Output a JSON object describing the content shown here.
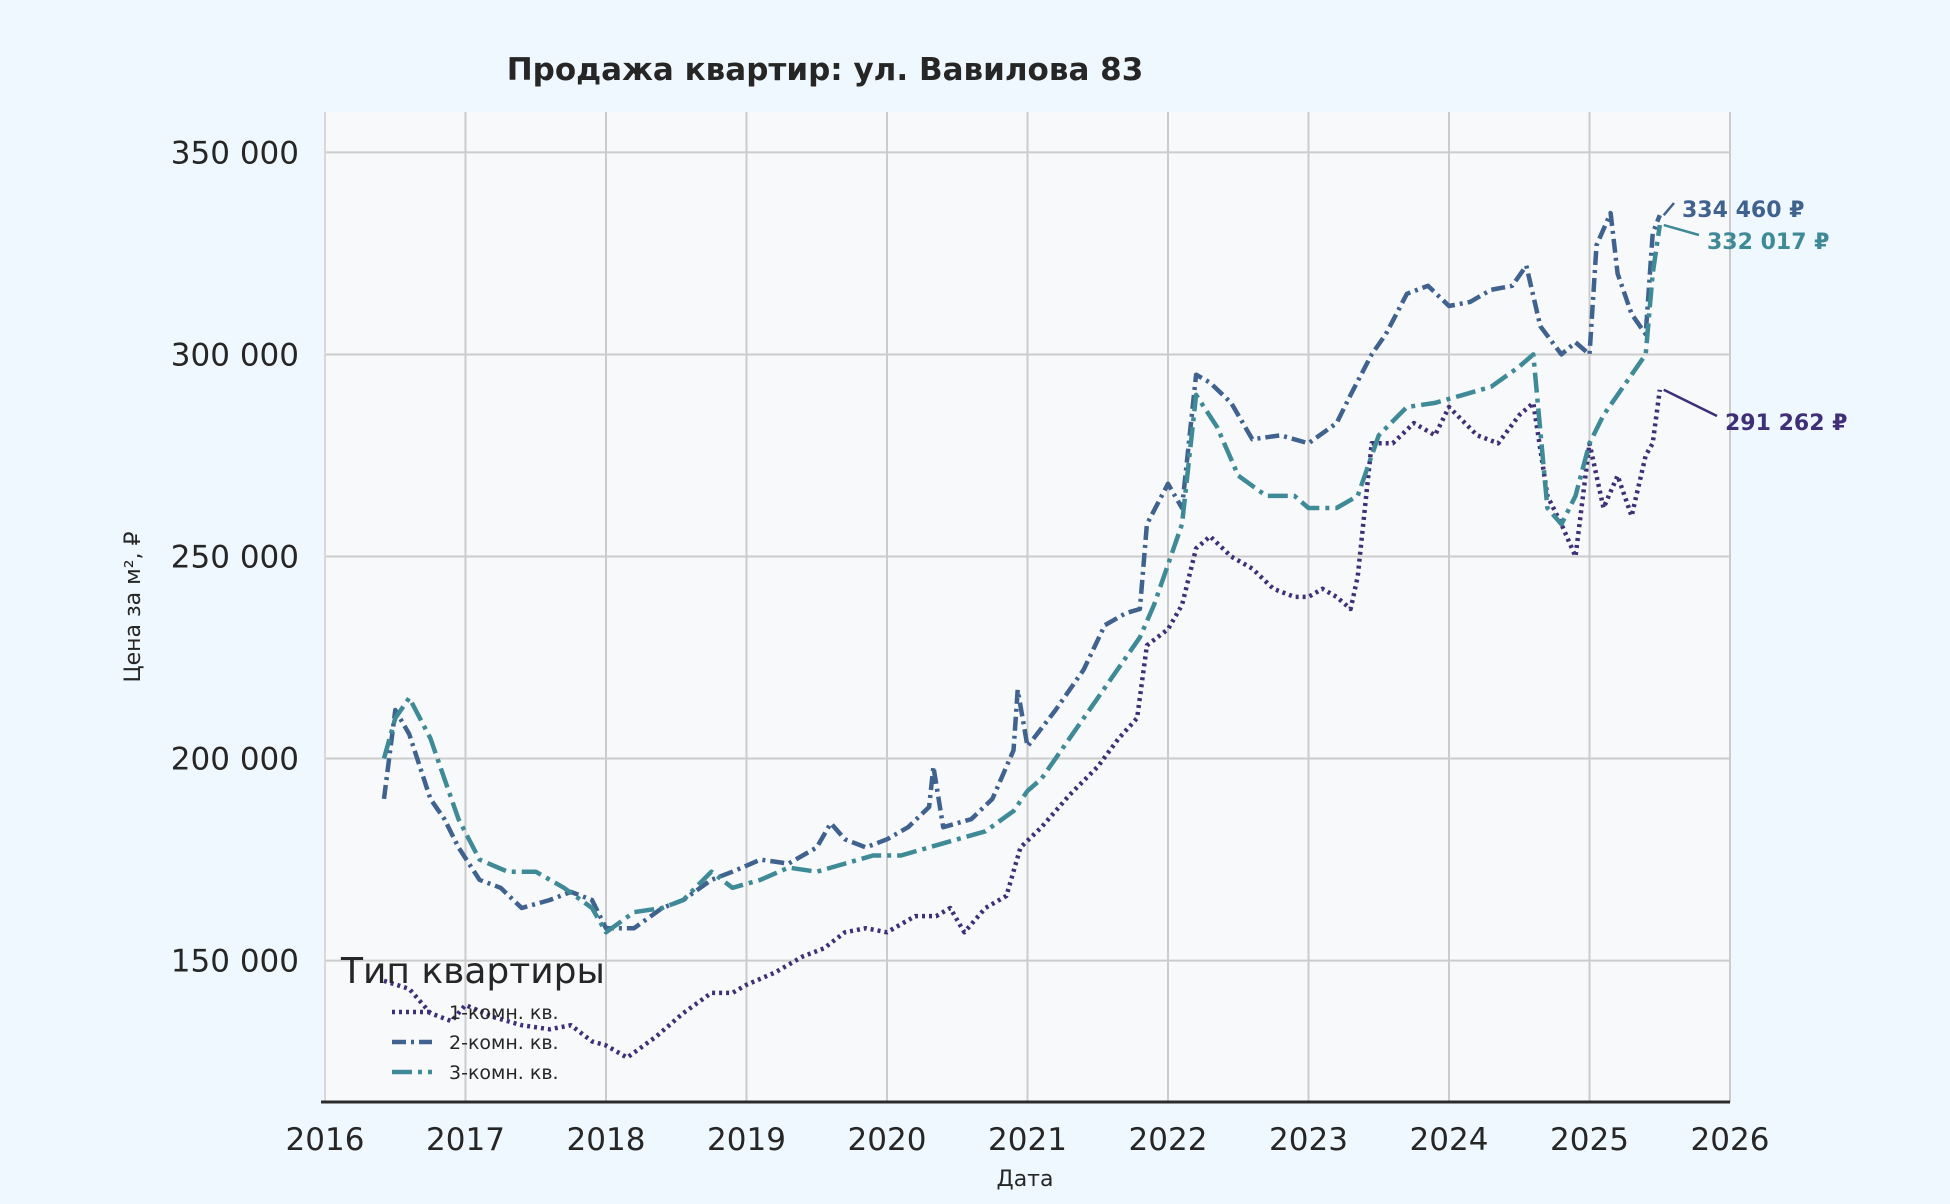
{
  "chart_data": {
    "type": "line",
    "title": "Продажа квартир: ул. Вавилова 83",
    "xlabel": "Дата",
    "ylabel": "Цена за м², ₽",
    "xlim": [
      2016.0,
      2026.0
    ],
    "ylim": [
      115000,
      360000
    ],
    "x_ticks": [
      2016,
      2017,
      2018,
      2019,
      2020,
      2021,
      2022,
      2023,
      2024,
      2025,
      2026
    ],
    "x_tick_labels": [
      "2016",
      "2017",
      "2018",
      "2019",
      "2020",
      "2021",
      "2022",
      "2023",
      "2024",
      "2025",
      "2026"
    ],
    "y_ticks": [
      150000,
      200000,
      250000,
      300000,
      350000
    ],
    "y_tick_labels": [
      "150 000",
      "200 000",
      "250 000",
      "300 000",
      "350 000"
    ],
    "grid": true,
    "legend": {
      "title": "Тип квартиры",
      "position": "lower-left"
    },
    "colors": {
      "background": "#f0f8ff",
      "plot_background": "#f8f9fa",
      "grid": "#cccccc",
      "axis": "#2b2b2b",
      "text": "#262626"
    },
    "series": [
      {
        "name": "1-комн. кв.",
        "color": "#3f2f77",
        "dash": "dotted",
        "end_label": "291 262 ₽",
        "x": [
          2016.42,
          2016.6,
          2016.75,
          2016.9,
          2017.0,
          2017.2,
          2017.4,
          2017.6,
          2017.75,
          2017.9,
          2018.0,
          2018.15,
          2018.35,
          2018.55,
          2018.75,
          2018.9,
          2019.0,
          2019.2,
          2019.4,
          2019.55,
          2019.7,
          2019.85,
          2020.0,
          2020.2,
          2020.35,
          2020.45,
          2020.55,
          2020.7,
          2020.85,
          2020.95,
          2021.1,
          2021.3,
          2021.5,
          2021.65,
          2021.78,
          2021.85,
          2022.0,
          2022.1,
          2022.2,
          2022.3,
          2022.45,
          2022.6,
          2022.75,
          2022.9,
          2023.0,
          2023.1,
          2023.2,
          2023.3,
          2023.35,
          2023.45,
          2023.6,
          2023.75,
          2023.9,
          2024.0,
          2024.2,
          2024.35,
          2024.5,
          2024.6,
          2024.7,
          2024.8,
          2024.9,
          2025.0,
          2025.1,
          2025.2,
          2025.3,
          2025.4,
          2025.45,
          2025.5
        ],
        "y": [
          145000,
          143000,
          137000,
          135000,
          139000,
          136000,
          134000,
          133000,
          134000,
          130000,
          129000,
          126000,
          131000,
          137000,
          142000,
          142000,
          144000,
          147000,
          151000,
          153000,
          157000,
          158000,
          157000,
          161000,
          161000,
          163000,
          157000,
          163000,
          166000,
          178000,
          183000,
          191000,
          198000,
          205000,
          210000,
          228000,
          232000,
          238000,
          252000,
          255000,
          250000,
          247000,
          242000,
          240000,
          240000,
          242000,
          240000,
          237000,
          245000,
          278000,
          278000,
          283000,
          280000,
          287000,
          280000,
          278000,
          285000,
          288000,
          265000,
          258000,
          250000,
          278000,
          262000,
          270000,
          260000,
          275000,
          278000,
          291262
        ]
      },
      {
        "name": "2-комн. кв.",
        "color": "#3f628e",
        "dash": "dashdot",
        "end_label": "334 460 ₽",
        "x": [
          2016.42,
          2016.5,
          2016.6,
          2016.75,
          2016.85,
          2016.95,
          2017.1,
          2017.25,
          2017.4,
          2017.6,
          2017.75,
          2017.9,
          2018.0,
          2018.2,
          2018.4,
          2018.55,
          2018.75,
          2018.9,
          2019.1,
          2019.3,
          2019.5,
          2019.6,
          2019.7,
          2019.85,
          2020.0,
          2020.15,
          2020.3,
          2020.33,
          2020.4,
          2020.6,
          2020.75,
          2020.9,
          2020.93,
          2021.0,
          2021.2,
          2021.4,
          2021.55,
          2021.7,
          2021.8,
          2021.85,
          2022.0,
          2022.1,
          2022.2,
          2022.3,
          2022.45,
          2022.6,
          2022.8,
          2023.0,
          2023.2,
          2023.3,
          2023.45,
          2023.55,
          2023.7,
          2023.85,
          2024.0,
          2024.15,
          2024.3,
          2024.45,
          2024.55,
          2024.65,
          2024.8,
          2024.9,
          2025.0,
          2025.05,
          2025.15,
          2025.2,
          2025.3,
          2025.4,
          2025.45,
          2025.5
        ],
        "y": [
          190000,
          212000,
          206000,
          190000,
          185000,
          178000,
          170000,
          168000,
          163000,
          165000,
          167000,
          165000,
          158000,
          158000,
          163000,
          165000,
          170000,
          172000,
          175000,
          174000,
          178000,
          184000,
          180000,
          178000,
          180000,
          183000,
          188000,
          198000,
          183000,
          185000,
          190000,
          202000,
          217000,
          203000,
          212000,
          222000,
          233000,
          236000,
          237000,
          258000,
          268000,
          262000,
          295000,
          293000,
          288000,
          279000,
          280000,
          278000,
          283000,
          290000,
          300000,
          305000,
          315000,
          317000,
          312000,
          313000,
          316000,
          317000,
          322000,
          307000,
          300000,
          303000,
          300000,
          327000,
          335000,
          320000,
          310000,
          305000,
          330000,
          334460
        ]
      },
      {
        "name": "3-комн. кв.",
        "color": "#3e8a97",
        "dash": "dashdot-long",
        "end_label": "332 017 ₽",
        "x": [
          2016.42,
          2016.5,
          2016.6,
          2016.75,
          2016.85,
          2016.95,
          2017.1,
          2017.3,
          2017.5,
          2017.7,
          2017.9,
          2018.0,
          2018.2,
          2018.4,
          2018.55,
          2018.75,
          2018.9,
          2019.1,
          2019.3,
          2019.5,
          2019.7,
          2019.9,
          2020.1,
          2020.3,
          2020.5,
          2020.7,
          2020.9,
          2021.0,
          2021.1,
          2021.3,
          2021.5,
          2021.7,
          2021.8,
          2021.9,
          2022.0,
          2022.1,
          2022.2,
          2022.35,
          2022.5,
          2022.7,
          2022.9,
          2023.0,
          2023.2,
          2023.35,
          2023.5,
          2023.7,
          2023.9,
          2024.1,
          2024.3,
          2024.5,
          2024.6,
          2024.7,
          2024.8,
          2024.9,
          2025.0,
          2025.1,
          2025.2,
          2025.3,
          2025.4,
          2025.45,
          2025.5
        ],
        "y": [
          200000,
          210000,
          215000,
          205000,
          195000,
          185000,
          175000,
          172000,
          172000,
          168000,
          163000,
          157000,
          162000,
          163000,
          165000,
          172000,
          168000,
          170000,
          173000,
          172000,
          174000,
          176000,
          176000,
          178000,
          180000,
          182000,
          187000,
          192000,
          195000,
          205000,
          215000,
          225000,
          230000,
          238000,
          248000,
          258000,
          290000,
          282000,
          270000,
          265000,
          265000,
          262000,
          262000,
          265000,
          280000,
          287000,
          288000,
          290000,
          292000,
          297000,
          300000,
          262000,
          258000,
          265000,
          278000,
          285000,
          290000,
          295000,
          300000,
          320000,
          332017
        ]
      }
    ]
  }
}
